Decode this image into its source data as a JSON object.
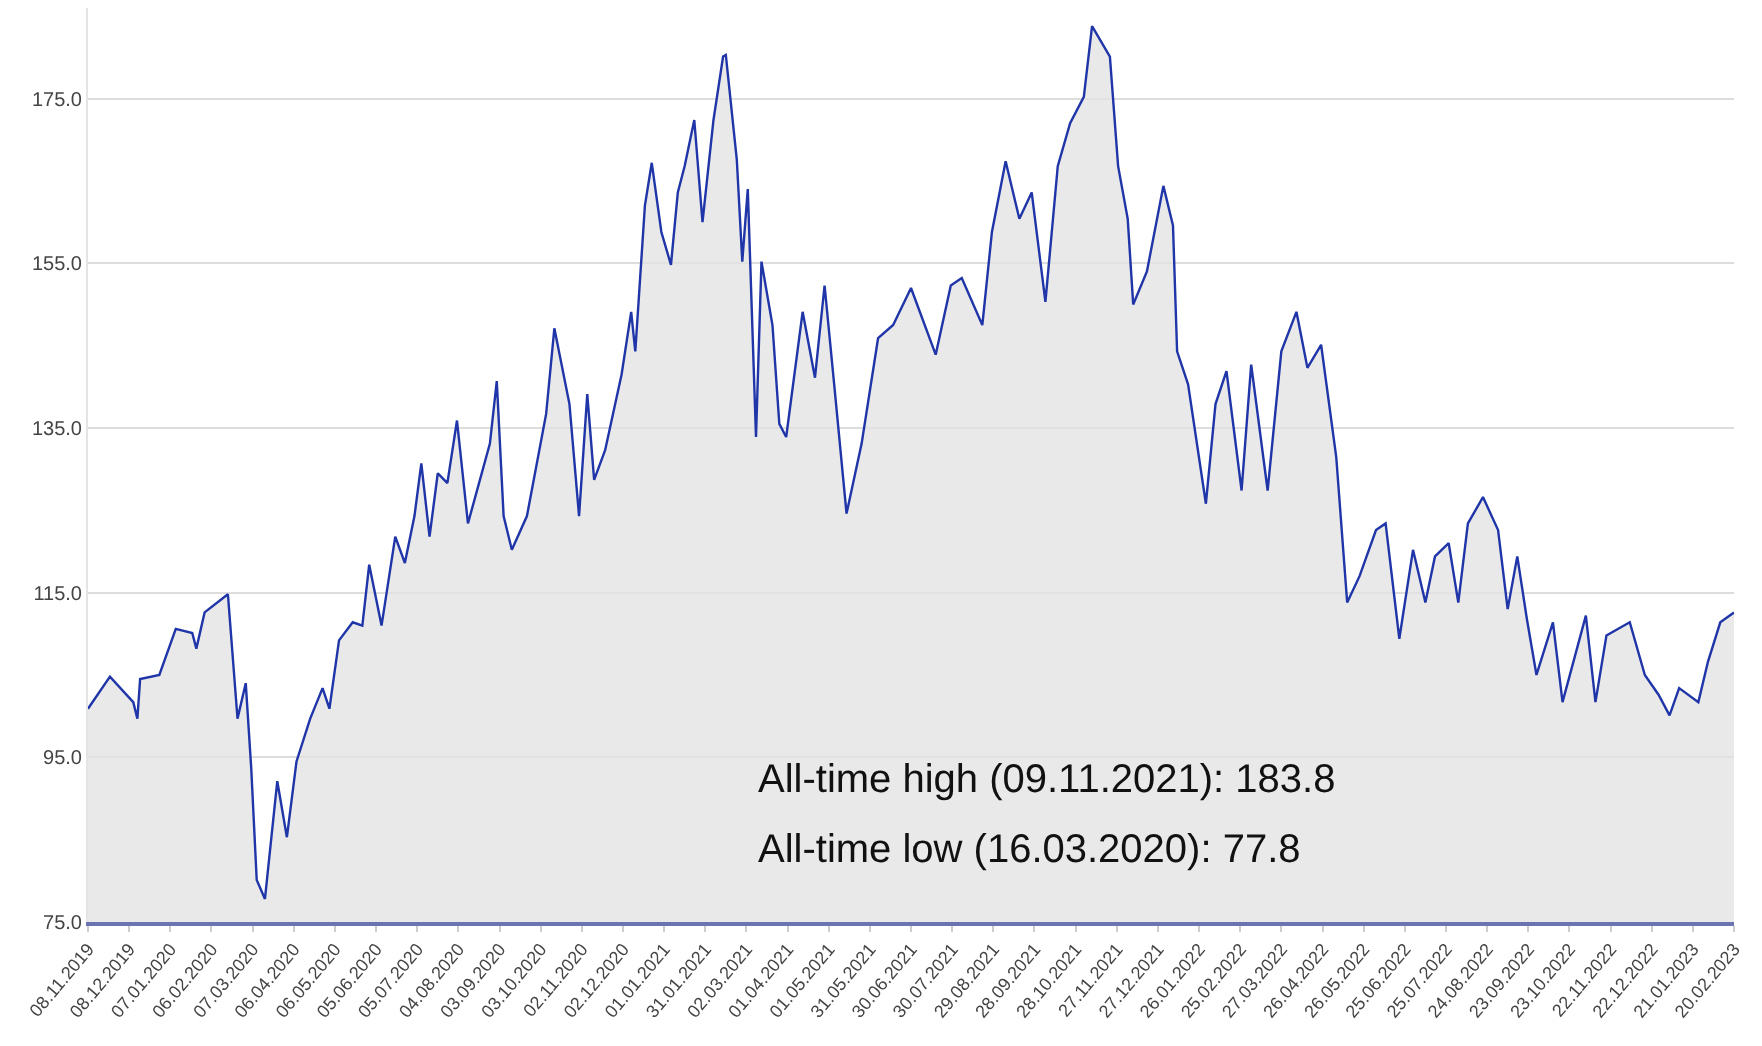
{
  "chart_data": {
    "type": "area",
    "x": [
      "2019-11-08",
      "2019-11-24",
      "2019-12-11",
      "2019-12-14",
      "2019-12-16",
      "2019-12-30",
      "2020-01-11",
      "2020-01-23",
      "2020-01-26",
      "2020-02-01",
      "2020-02-18",
      "2020-02-25",
      "2020-03-02",
      "2020-03-06",
      "2020-03-10",
      "2020-03-16",
      "2020-03-25",
      "2020-04-01",
      "2020-04-08",
      "2020-04-18",
      "2020-04-27",
      "2020-05-02",
      "2020-05-09",
      "2020-05-19",
      "2020-05-26",
      "2020-05-31",
      "2020-06-09",
      "2020-06-19",
      "2020-06-26",
      "2020-07-03",
      "2020-07-08",
      "2020-07-14",
      "2020-07-20",
      "2020-07-27",
      "2020-08-03",
      "2020-08-11",
      "2020-08-27",
      "2020-09-01",
      "2020-09-06",
      "2020-09-12",
      "2020-09-23",
      "2020-10-07",
      "2020-10-13",
      "2020-10-24",
      "2020-10-31",
      "2020-11-06",
      "2020-11-11",
      "2020-11-19",
      "2020-12-01",
      "2020-12-08",
      "2020-12-11",
      "2020-12-18",
      "2020-12-23",
      "2020-12-30",
      "2021-01-06",
      "2021-01-11",
      "2021-01-16",
      "2021-01-23",
      "2021-01-29",
      "2021-02-06",
      "2021-02-13",
      "2021-02-15",
      "2021-02-23",
      "2021-02-27",
      "2021-03-03",
      "2021-03-09",
      "2021-03-13",
      "2021-03-21",
      "2021-03-26",
      "2021-03-31",
      "2021-04-12",
      "2021-04-21",
      "2021-04-28",
      "2021-05-05",
      "2021-05-14",
      "2021-05-25",
      "2021-06-06",
      "2021-06-17",
      "2021-06-30",
      "2021-07-18",
      "2021-07-29",
      "2021-08-06",
      "2021-08-21",
      "2021-08-28",
      "2021-09-07",
      "2021-09-17",
      "2021-09-26",
      "2021-10-06",
      "2021-10-15",
      "2021-10-24",
      "2021-11-03",
      "2021-11-09",
      "2021-11-22",
      "2021-11-28",
      "2021-12-05",
      "2021-12-09",
      "2021-12-19",
      "2021-12-31",
      "2022-01-07",
      "2022-01-10",
      "2022-01-18",
      "2022-01-31",
      "2022-02-07",
      "2022-02-15",
      "2022-02-26",
      "2022-03-05",
      "2022-03-17",
      "2022-03-27",
      "2022-04-07",
      "2022-04-15",
      "2022-04-25",
      "2022-05-06",
      "2022-05-14",
      "2022-05-23",
      "2022-06-04",
      "2022-06-11",
      "2022-06-21",
      "2022-07-01",
      "2022-07-10",
      "2022-07-17",
      "2022-07-27",
      "2022-08-03",
      "2022-08-10",
      "2022-08-21",
      "2022-09-01",
      "2022-09-08",
      "2022-09-15",
      "2022-09-22",
      "2022-09-29",
      "2022-10-11",
      "2022-10-18",
      "2022-11-04",
      "2022-11-11",
      "2022-11-19",
      "2022-12-06",
      "2022-12-17",
      "2022-12-27",
      "2023-01-04",
      "2023-01-11",
      "2023-01-25",
      "2023-02-01",
      "2023-02-10",
      "2023-02-20"
    ],
    "series": [
      {
        "color": "#1f35a8",
        "values": [
          100.9,
          104.8,
          101.7,
          99.7,
          104.5,
          105,
          110.6,
          110.1,
          108.2,
          112.6,
          114.8,
          99.7,
          104,
          93.7,
          80.1,
          77.8,
          92.1,
          85.3,
          94.5,
          99.7,
          103.4,
          100.9,
          109.2,
          111.4,
          111,
          118.4,
          111,
          121.8,
          118.6,
          124.3,
          130.7,
          121.8,
          129.5,
          128.3,
          135.9,
          123.4,
          133.1,
          140.7,
          124.3,
          120.2,
          124.3,
          136.7,
          147.1,
          137.9,
          124.3,
          139.1,
          128.7,
          132.3,
          141.5,
          149.1,
          144.3,
          162,
          167.2,
          158.8,
          154.8,
          163.6,
          166.8,
          172.4,
          160,
          172.4,
          180.1,
          180.3,
          167.6,
          155.2,
          164,
          133.9,
          155.2,
          147.5,
          135.5,
          133.9,
          149.1,
          141.1,
          152.3,
          140.3,
          124.6,
          133.1,
          145.9,
          147.5,
          152,
          143.9,
          152.3,
          153.2,
          147.5,
          158.8,
          167.4,
          160.4,
          163.6,
          150.3,
          166.8,
          172,
          175.2,
          183.8,
          180.1,
          166.8,
          160.4,
          150,
          154,
          164.4,
          159.6,
          144.3,
          140.3,
          125.8,
          137.9,
          141.9,
          127.4,
          142.7,
          127.4,
          144.3,
          149.1,
          142.3,
          145.1,
          131.5,
          113.8,
          117,
          122.6,
          123.4,
          109.4,
          120.2,
          113.8,
          119.4,
          121,
          113.8,
          123.4,
          126.6,
          122.6,
          113,
          119.4,
          111.8,
          105,
          111.4,
          101.7,
          112.2,
          101.7,
          109.8,
          111.4,
          105,
          102.6,
          100.1,
          103.4,
          101.7,
          106.6,
          111.4,
          112.6
        ]
      }
    ],
    "xlim": [
      "2019-11-08",
      "2023-02-20"
    ],
    "xticks": [
      {
        "value": "2019-11-08",
        "label": "08.11.2019"
      },
      {
        "value": "2019-12-08",
        "label": "08.12.2019"
      },
      {
        "value": "2020-01-07",
        "label": "07.01.2020"
      },
      {
        "value": "2020-02-06",
        "label": "06.02.2020"
      },
      {
        "value": "2020-03-07",
        "label": "07.03.2020"
      },
      {
        "value": "2020-04-06",
        "label": "06.04.2020"
      },
      {
        "value": "2020-05-06",
        "label": "06.05.2020"
      },
      {
        "value": "2020-06-05",
        "label": "05.06.2020"
      },
      {
        "value": "2020-07-05",
        "label": "05.07.2020"
      },
      {
        "value": "2020-08-04",
        "label": "04.08.2020"
      },
      {
        "value": "2020-09-03",
        "label": "03.09.2020"
      },
      {
        "value": "2020-10-03",
        "label": "03.10.2020"
      },
      {
        "value": "2020-11-02",
        "label": "02.11.2020"
      },
      {
        "value": "2020-12-02",
        "label": "02.12.2020"
      },
      {
        "value": "2021-01-01",
        "label": "01.01.2021"
      },
      {
        "value": "2021-01-31",
        "label": "31.01.2021"
      },
      {
        "value": "2021-03-02",
        "label": "02.03.2021"
      },
      {
        "value": "2021-04-01",
        "label": "01.04.2021"
      },
      {
        "value": "2021-05-01",
        "label": "01.05.2021"
      },
      {
        "value": "2021-05-31",
        "label": "31.05.2021"
      },
      {
        "value": "2021-06-30",
        "label": "30.06.2021"
      },
      {
        "value": "2021-07-30",
        "label": "30.07.2021"
      },
      {
        "value": "2021-08-29",
        "label": "29.08.2021"
      },
      {
        "value": "2021-09-28",
        "label": "28.09.2021"
      },
      {
        "value": "2021-10-28",
        "label": "28.10.2021"
      },
      {
        "value": "2021-11-27",
        "label": "27.11.2021"
      },
      {
        "value": "2021-12-27",
        "label": "27.12.2021"
      },
      {
        "value": "2022-01-26",
        "label": "26.01.2022"
      },
      {
        "value": "2022-02-25",
        "label": "25.02.2022"
      },
      {
        "value": "2022-03-27",
        "label": "27.03.2022"
      },
      {
        "value": "2022-04-26",
        "label": "26.04.2022"
      },
      {
        "value": "2022-05-26",
        "label": "26.05.2022"
      },
      {
        "value": "2022-06-25",
        "label": "25.06.2022"
      },
      {
        "value": "2022-07-25",
        "label": "25.07.2022"
      },
      {
        "value": "2022-08-24",
        "label": "24.08.2022"
      },
      {
        "value": "2022-09-23",
        "label": "23.09.2022"
      },
      {
        "value": "2022-10-23",
        "label": "23.10.2022"
      },
      {
        "value": "2022-11-22",
        "label": "22.11.2022"
      },
      {
        "value": "2022-12-22",
        "label": "22.12.2022"
      },
      {
        "value": "2023-01-21",
        "label": "21.01.2023"
      },
      {
        "value": "2023-02-20",
        "label": "20.02.2023"
      }
    ],
    "ylim": [
      75,
      186
    ],
    "yticks": [
      {
        "value": 75,
        "label": "75.0"
      },
      {
        "value": 95,
        "label": "95.0"
      },
      {
        "value": 115,
        "label": "115.0"
      },
      {
        "value": 135,
        "label": "135.0"
      },
      {
        "value": 155,
        "label": "155.0"
      },
      {
        "value": 175,
        "label": "175.0"
      }
    ],
    "grid": "y",
    "annotations": [
      "All-time high (09.11.2021): 183.8",
      "All-time low (16.03.2020): 77.8"
    ]
  }
}
